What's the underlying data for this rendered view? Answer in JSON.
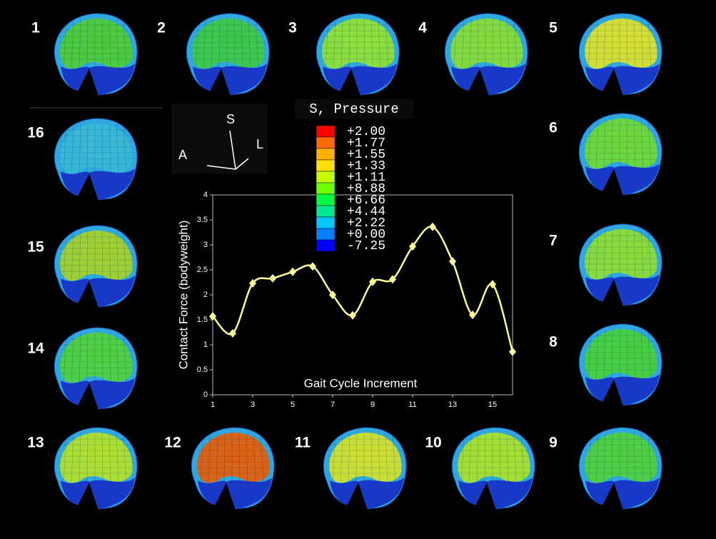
{
  "chart_data": {
    "type": "line",
    "x": [
      1,
      2,
      3,
      4,
      5,
      6,
      7,
      8,
      9,
      10,
      11,
      12,
      13,
      14,
      15,
      16
    ],
    "values": [
      1.57,
      1.23,
      2.23,
      2.33,
      2.46,
      2.57,
      2.0,
      1.59,
      2.26,
      2.31,
      2.97,
      3.36,
      2.67,
      1.6,
      2.21,
      0.86
    ],
    "color": "#ffff99",
    "xlabel": "Gait Cycle Increment",
    "ylabel": "Contact Force (bodyweight)",
    "xlim": [
      1,
      16
    ],
    "xticks": [
      1,
      3,
      5,
      7,
      9,
      11,
      13,
      15
    ],
    "ylim": [
      0,
      4
    ],
    "yticks": [
      0,
      0.5,
      1,
      1.5,
      2,
      2.5,
      3,
      3.5,
      4
    ]
  },
  "legend": {
    "title": "S, Pressure",
    "labels": [
      "+2.00",
      "+1.77",
      "+1.55",
      "+1.33",
      "+1.11",
      "+8.88",
      "+6.66",
      "+4.44",
      "+2.22",
      "+0.00",
      "-7.25"
    ],
    "colors": [
      "#ff0000",
      "#ff6a00",
      "#ffb300",
      "#ffe000",
      "#c8ff00",
      "#6eff00",
      "#00ff40",
      "#00e890",
      "#00c8ff",
      "#0080ff",
      "#0000ff"
    ]
  },
  "orientation": {
    "superior": "S",
    "anterior": "A",
    "lateral": "L"
  },
  "panels": [
    {
      "label": "1",
      "color": "#4ecb3a"
    },
    {
      "label": "2",
      "color": "#3cc84a"
    },
    {
      "label": "3",
      "color": "#8ee03a"
    },
    {
      "label": "4",
      "color": "#86dc3a"
    },
    {
      "label": "5",
      "color": "#d8e030"
    },
    {
      "label": "6",
      "color": "#6ed83a"
    },
    {
      "label": "7",
      "color": "#8cdc3a"
    },
    {
      "label": "8",
      "color": "#48d040"
    },
    {
      "label": "9",
      "color": "#50d040"
    },
    {
      "label": "10",
      "color": "#a8e030"
    },
    {
      "label": "11",
      "color": "#d0e030"
    },
    {
      "label": "12",
      "color": "#e06010"
    },
    {
      "label": "13",
      "color": "#b0e030"
    },
    {
      "label": "14",
      "color": "#50d040"
    },
    {
      "label": "15",
      "color": "#a0d030"
    },
    {
      "label": "16",
      "color": "#38b8d8"
    }
  ]
}
